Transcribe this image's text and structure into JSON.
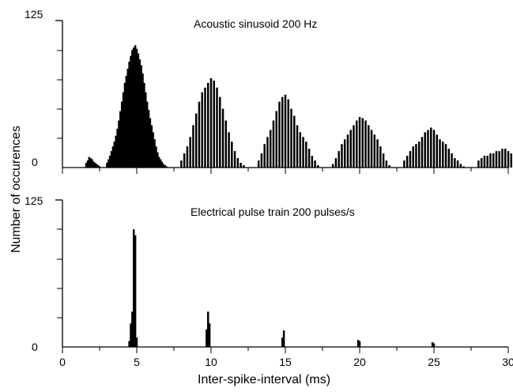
{
  "chart_data": {
    "type": "bar",
    "layout": "two vertically stacked histograms sharing the x axis",
    "xlabel": "Inter-spike-interval (ms)",
    "ylabel": "Number of occurences",
    "xlim": [
      0,
      30
    ],
    "x_ticks": [
      0,
      5,
      10,
      15,
      20,
      25,
      30
    ],
    "x_tick_labels": [
      "0",
      "5",
      "10",
      "15",
      "20",
      "25",
      "30"
    ],
    "grid": false,
    "bar_color": "#000000",
    "bin_width": 0.1,
    "panels": [
      {
        "id": "acoustic",
        "title": "Acoustic sinusoid 200 Hz",
        "ylim": [
          0,
          125
        ],
        "y_tick_labels": [
          "0",
          "125"
        ],
        "x": [
          1.6,
          1.7,
          1.8,
          1.9,
          2.0,
          2.1,
          2.2,
          2.3,
          2.4,
          2.5,
          3.0,
          3.1,
          3.2,
          3.3,
          3.4,
          3.5,
          3.6,
          3.7,
          3.8,
          3.9,
          4.0,
          4.1,
          4.2,
          4.3,
          4.4,
          4.5,
          4.6,
          4.7,
          4.8,
          4.9,
          5.0,
          5.1,
          5.2,
          5.3,
          5.4,
          5.5,
          5.6,
          5.7,
          5.8,
          5.9,
          6.0,
          6.1,
          6.2,
          6.3,
          6.4,
          6.5,
          6.6,
          6.7,
          6.8,
          6.9,
          7.0,
          8.0,
          8.2,
          8.4,
          8.6,
          8.8,
          9.0,
          9.2,
          9.4,
          9.6,
          9.8,
          10.0,
          10.2,
          10.4,
          10.6,
          10.8,
          11.0,
          11.2,
          11.4,
          11.6,
          11.8,
          12.0,
          12.2,
          13.2,
          13.4,
          13.6,
          13.8,
          14.0,
          14.2,
          14.4,
          14.6,
          14.8,
          15.0,
          15.2,
          15.4,
          15.6,
          15.8,
          16.0,
          16.2,
          16.4,
          16.6,
          16.8,
          17.0,
          17.2,
          18.2,
          18.4,
          18.6,
          18.8,
          19.0,
          19.2,
          19.4,
          19.6,
          19.8,
          20.0,
          20.2,
          20.4,
          20.6,
          20.8,
          21.0,
          21.2,
          21.4,
          21.6,
          21.8,
          22.0,
          23.0,
          23.2,
          23.4,
          23.6,
          23.8,
          24.0,
          24.2,
          24.4,
          24.6,
          24.8,
          25.0,
          25.2,
          25.4,
          25.6,
          25.8,
          26.0,
          26.2,
          26.4,
          26.6,
          26.8,
          27.0,
          28.0,
          28.2,
          28.4,
          28.6,
          28.8,
          29.0,
          29.2,
          29.4,
          29.6,
          29.8,
          30.0,
          30.2,
          30.4
        ],
        "values": [
          4,
          6,
          9,
          8,
          7,
          5,
          4,
          3,
          2,
          1,
          4,
          7,
          10,
          14,
          18,
          22,
          27,
          33,
          40,
          48,
          56,
          64,
          72,
          78,
          84,
          90,
          95,
          100,
          102,
          104,
          101,
          97,
          92,
          87,
          80,
          72,
          64,
          56,
          49,
          42,
          36,
          30,
          24,
          18,
          13,
          9,
          7,
          5,
          3,
          2,
          1,
          6,
          12,
          18,
          26,
          36,
          46,
          56,
          64,
          68,
          72,
          76,
          74,
          68,
          60,
          50,
          40,
          30,
          22,
          14,
          8,
          4,
          2,
          6,
          12,
          20,
          26,
          32,
          40,
          48,
          56,
          60,
          62,
          58,
          50,
          44,
          36,
          30,
          26,
          22,
          16,
          10,
          6,
          2,
          3,
          8,
          14,
          20,
          24,
          28,
          32,
          36,
          40,
          43,
          42,
          40,
          36,
          32,
          28,
          24,
          18,
          12,
          6,
          2,
          6,
          10,
          14,
          18,
          20,
          22,
          26,
          30,
          32,
          34,
          32,
          28,
          24,
          22,
          20,
          16,
          12,
          8,
          6,
          3,
          1,
          6,
          8,
          10,
          10,
          12,
          12,
          14,
          14,
          16,
          16,
          14,
          12,
          10
        ]
      },
      {
        "id": "electrical",
        "title": "Electrical pulse train 200 pulses/s",
        "ylim": [
          0,
          125
        ],
        "y_tick_labels": [
          "0",
          "125"
        ],
        "x": [
          4.5,
          4.6,
          4.7,
          4.8,
          4.9,
          5.0,
          9.7,
          9.8,
          9.9,
          14.8,
          14.9,
          19.9,
          20.0,
          24.9,
          25.0
        ],
        "values": [
          5,
          20,
          30,
          100,
          95,
          8,
          15,
          30,
          20,
          8,
          14,
          6,
          5,
          4,
          3
        ]
      }
    ]
  }
}
